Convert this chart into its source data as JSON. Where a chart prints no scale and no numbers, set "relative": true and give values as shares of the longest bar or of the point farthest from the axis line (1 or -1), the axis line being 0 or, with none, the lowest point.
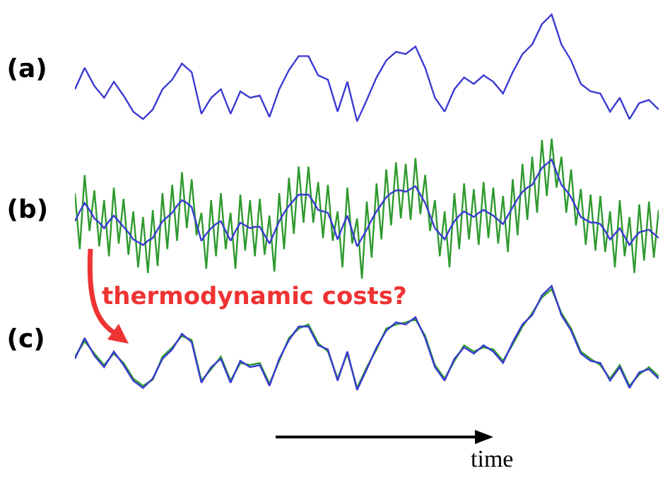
{
  "chart_data": [
    {
      "type": "line",
      "title": "(a)",
      "relative": true,
      "categories": [
        null,
        null,
        null,
        null,
        null,
        null,
        null,
        null,
        null,
        null,
        null,
        null,
        null,
        null,
        null,
        null,
        null,
        null,
        null,
        null,
        null,
        null,
        null,
        null,
        null,
        null,
        null,
        null,
        null,
        null,
        null,
        null,
        null,
        null,
        null,
        null,
        null,
        null,
        null,
        null,
        null,
        null,
        null,
        null,
        null,
        null,
        null,
        null,
        null,
        null,
        null,
        null,
        null,
        null,
        null,
        null,
        null,
        null,
        null,
        null,
        null
      ],
      "series": [
        {
          "color": "#3a3ad2",
          "values": [
            0.3,
            0.5,
            0.33,
            0.22,
            0.37,
            0.24,
            0.09,
            0.02,
            0.11,
            0.3,
            0.39,
            0.54,
            0.46,
            0.07,
            0.22,
            0.3,
            0.07,
            0.28,
            0.22,
            0.24,
            0.04,
            0.3,
            0.48,
            0.61,
            0.61,
            0.43,
            0.39,
            0.09,
            0.37,
            0.0,
            0.2,
            0.41,
            0.57,
            0.65,
            0.63,
            0.7,
            0.5,
            0.22,
            0.09,
            0.3,
            0.41,
            0.35,
            0.43,
            0.37,
            0.26,
            0.46,
            0.63,
            0.72,
            0.91,
            1.0,
            0.72,
            0.57,
            0.35,
            0.28,
            0.26,
            0.09,
            0.22,
            0.02,
            0.17,
            0.2,
            0.11
          ]
        }
      ]
    },
    {
      "type": "line",
      "title": "(b)",
      "relative": true,
      "annotations": [
        "thermodynamic costs?"
      ],
      "categories": [
        null,
        null,
        null,
        null,
        null,
        null,
        null,
        null,
        null,
        null,
        null,
        null,
        null,
        null,
        null,
        null,
        null,
        null,
        null,
        null,
        null,
        null,
        null,
        null,
        null,
        null,
        null,
        null,
        null,
        null,
        null,
        null,
        null,
        null,
        null,
        null,
        null,
        null,
        null,
        null,
        null,
        null,
        null,
        null,
        null,
        null,
        null,
        null,
        null,
        null,
        null,
        null,
        null,
        null,
        null,
        null,
        null,
        null,
        null,
        null,
        null,
        null,
        null,
        null,
        null,
        null,
        null,
        null,
        null,
        null,
        null,
        null,
        null,
        null,
        null,
        null,
        null,
        null,
        null,
        null,
        null,
        null,
        null,
        null,
        null,
        null,
        null,
        null,
        null,
        null,
        null,
        null,
        null,
        null,
        null,
        null,
        null,
        null,
        null,
        null,
        null,
        null,
        null,
        null,
        null,
        null,
        null,
        null,
        null,
        null,
        null,
        null,
        null,
        null,
        null,
        null,
        null,
        null,
        null,
        null,
        null
      ],
      "series": [
        {
          "color": "#2e9a2e",
          "values": [
            0.61,
            0.21,
            0.74,
            0.34,
            0.63,
            0.23,
            0.56,
            0.16,
            0.65,
            0.25,
            0.57,
            0.17,
            0.48,
            0.08,
            0.44,
            0.04,
            0.49,
            0.09,
            0.61,
            0.21,
            0.67,
            0.27,
            0.76,
            0.36,
            0.71,
            0.31,
            0.47,
            0.07,
            0.56,
            0.16,
            0.61,
            0.21,
            0.47,
            0.07,
            0.6,
            0.2,
            0.56,
            0.16,
            0.57,
            0.17,
            0.45,
            0.05,
            0.61,
            0.21,
            0.72,
            0.32,
            0.8,
            0.4,
            0.8,
            0.4,
            0.69,
            0.29,
            0.67,
            0.27,
            0.48,
            0.08,
            0.65,
            0.25,
            0.43,
            0.0,
            0.55,
            0.15,
            0.68,
            0.28,
            0.78,
            0.38,
            0.83,
            0.43,
            0.82,
            0.42,
            0.86,
            0.46,
            0.74,
            0.34,
            0.56,
            0.16,
            0.48,
            0.08,
            0.61,
            0.21,
            0.68,
            0.28,
            0.64,
            0.24,
            0.69,
            0.29,
            0.65,
            0.25,
            0.59,
            0.19,
            0.71,
            0.31,
            0.82,
            0.42,
            0.87,
            0.47,
            0.99,
            0.59,
            1.0,
            0.65,
            0.87,
            0.47,
            0.78,
            0.38,
            0.64,
            0.24,
            0.6,
            0.2,
            0.59,
            0.19,
            0.48,
            0.08,
            0.56,
            0.16,
            0.44,
            0.04,
            0.53,
            0.13,
            0.55,
            0.15,
            0.49
          ]
        },
        {
          "color": "#3a3ad2",
          "values": [
            0.41,
            0.48,
            0.54,
            0.49,
            0.43,
            0.4,
            0.36,
            0.41,
            0.45,
            0.41,
            0.37,
            0.33,
            0.28,
            0.26,
            0.24,
            0.27,
            0.29,
            0.35,
            0.41,
            0.44,
            0.47,
            0.52,
            0.56,
            0.54,
            0.51,
            0.39,
            0.27,
            0.32,
            0.36,
            0.39,
            0.41,
            0.34,
            0.27,
            0.34,
            0.4,
            0.38,
            0.36,
            0.37,
            0.37,
            0.31,
            0.25,
            0.33,
            0.41,
            0.47,
            0.52,
            0.56,
            0.6,
            0.6,
            0.6,
            0.55,
            0.49,
            0.48,
            0.47,
            0.38,
            0.28,
            0.37,
            0.45,
            0.34,
            0.23,
            0.29,
            0.35,
            0.42,
            0.48,
            0.53,
            0.58,
            0.61,
            0.63,
            0.63,
            0.62,
            0.64,
            0.66,
            0.6,
            0.54,
            0.45,
            0.36,
            0.32,
            0.28,
            0.35,
            0.41,
            0.45,
            0.48,
            0.46,
            0.44,
            0.47,
            0.49,
            0.47,
            0.45,
            0.42,
            0.39,
            0.45,
            0.51,
            0.57,
            0.62,
            0.65,
            0.67,
            0.73,
            0.79,
            0.82,
            0.85,
            0.76,
            0.67,
            0.63,
            0.58,
            0.51,
            0.44,
            0.42,
            0.4,
            0.4,
            0.39,
            0.34,
            0.28,
            0.32,
            0.36,
            0.3,
            0.24,
            0.29,
            0.33,
            0.34,
            0.35,
            0.32,
            0.29
          ]
        }
      ]
    },
    {
      "type": "line",
      "title": "(c)",
      "relative": true,
      "xlabel": "time",
      "categories": [
        null,
        null,
        null,
        null,
        null,
        null,
        null,
        null,
        null,
        null,
        null,
        null,
        null,
        null,
        null,
        null,
        null,
        null,
        null,
        null,
        null,
        null,
        null,
        null,
        null,
        null,
        null,
        null,
        null,
        null,
        null,
        null,
        null,
        null,
        null,
        null,
        null,
        null,
        null,
        null,
        null,
        null,
        null,
        null,
        null,
        null,
        null,
        null,
        null,
        null,
        null,
        null,
        null,
        null,
        null,
        null,
        null,
        null,
        null,
        null,
        null
      ],
      "series": [
        {
          "color": "#2e9a2e",
          "values": [
            0.32,
            0.47,
            0.35,
            0.24,
            0.35,
            0.26,
            0.11,
            0.04,
            0.1,
            0.32,
            0.41,
            0.52,
            0.48,
            0.09,
            0.2,
            0.32,
            0.09,
            0.26,
            0.24,
            0.26,
            0.06,
            0.28,
            0.5,
            0.59,
            0.63,
            0.45,
            0.37,
            0.11,
            0.35,
            0.02,
            0.22,
            0.39,
            0.59,
            0.63,
            0.65,
            0.68,
            0.52,
            0.24,
            0.11,
            0.28,
            0.43,
            0.37,
            0.41,
            0.39,
            0.28,
            0.44,
            0.61,
            0.74,
            0.89,
            0.97,
            0.74,
            0.59,
            0.37,
            0.3,
            0.24,
            0.11,
            0.24,
            0.04,
            0.15,
            0.22,
            0.13
          ]
        },
        {
          "color": "#3a3ad2",
          "values": [
            0.3,
            0.5,
            0.33,
            0.22,
            0.37,
            0.24,
            0.09,
            0.02,
            0.11,
            0.3,
            0.39,
            0.54,
            0.46,
            0.07,
            0.22,
            0.3,
            0.07,
            0.28,
            0.22,
            0.24,
            0.04,
            0.3,
            0.48,
            0.61,
            0.61,
            0.43,
            0.39,
            0.09,
            0.37,
            0.0,
            0.2,
            0.41,
            0.57,
            0.65,
            0.63,
            0.7,
            0.5,
            0.22,
            0.09,
            0.3,
            0.41,
            0.35,
            0.43,
            0.37,
            0.26,
            0.46,
            0.63,
            0.72,
            0.91,
            1.0,
            0.72,
            0.57,
            0.35,
            0.28,
            0.26,
            0.09,
            0.22,
            0.02,
            0.17,
            0.2,
            0.11
          ]
        }
      ]
    }
  ]
}
